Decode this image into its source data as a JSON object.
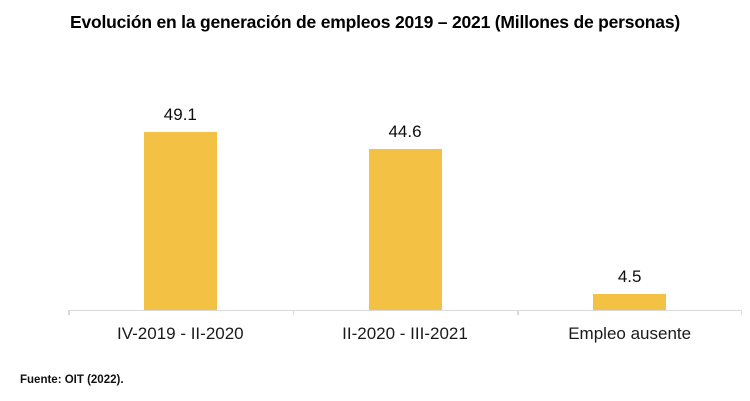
{
  "chart_data": {
    "type": "bar",
    "title": "Evolución en la generación de empleos 2019 – 2021 (Millones de personas)",
    "categories": [
      "IV-2019 - II-2020",
      "II-2020 - III-2021",
      "Empleo ausente"
    ],
    "values": [
      49.1,
      44.6,
      4.5
    ],
    "data_labels": [
      "49.1",
      "44.6",
      "4.5"
    ],
    "xlabel": "",
    "ylabel": "",
    "ylim": [
      0,
      55
    ],
    "grid": false,
    "legend": false,
    "bar_color": "#f3c244",
    "axis_color": "#d9d9d9",
    "source": "Fuente: OIT (2022)."
  }
}
